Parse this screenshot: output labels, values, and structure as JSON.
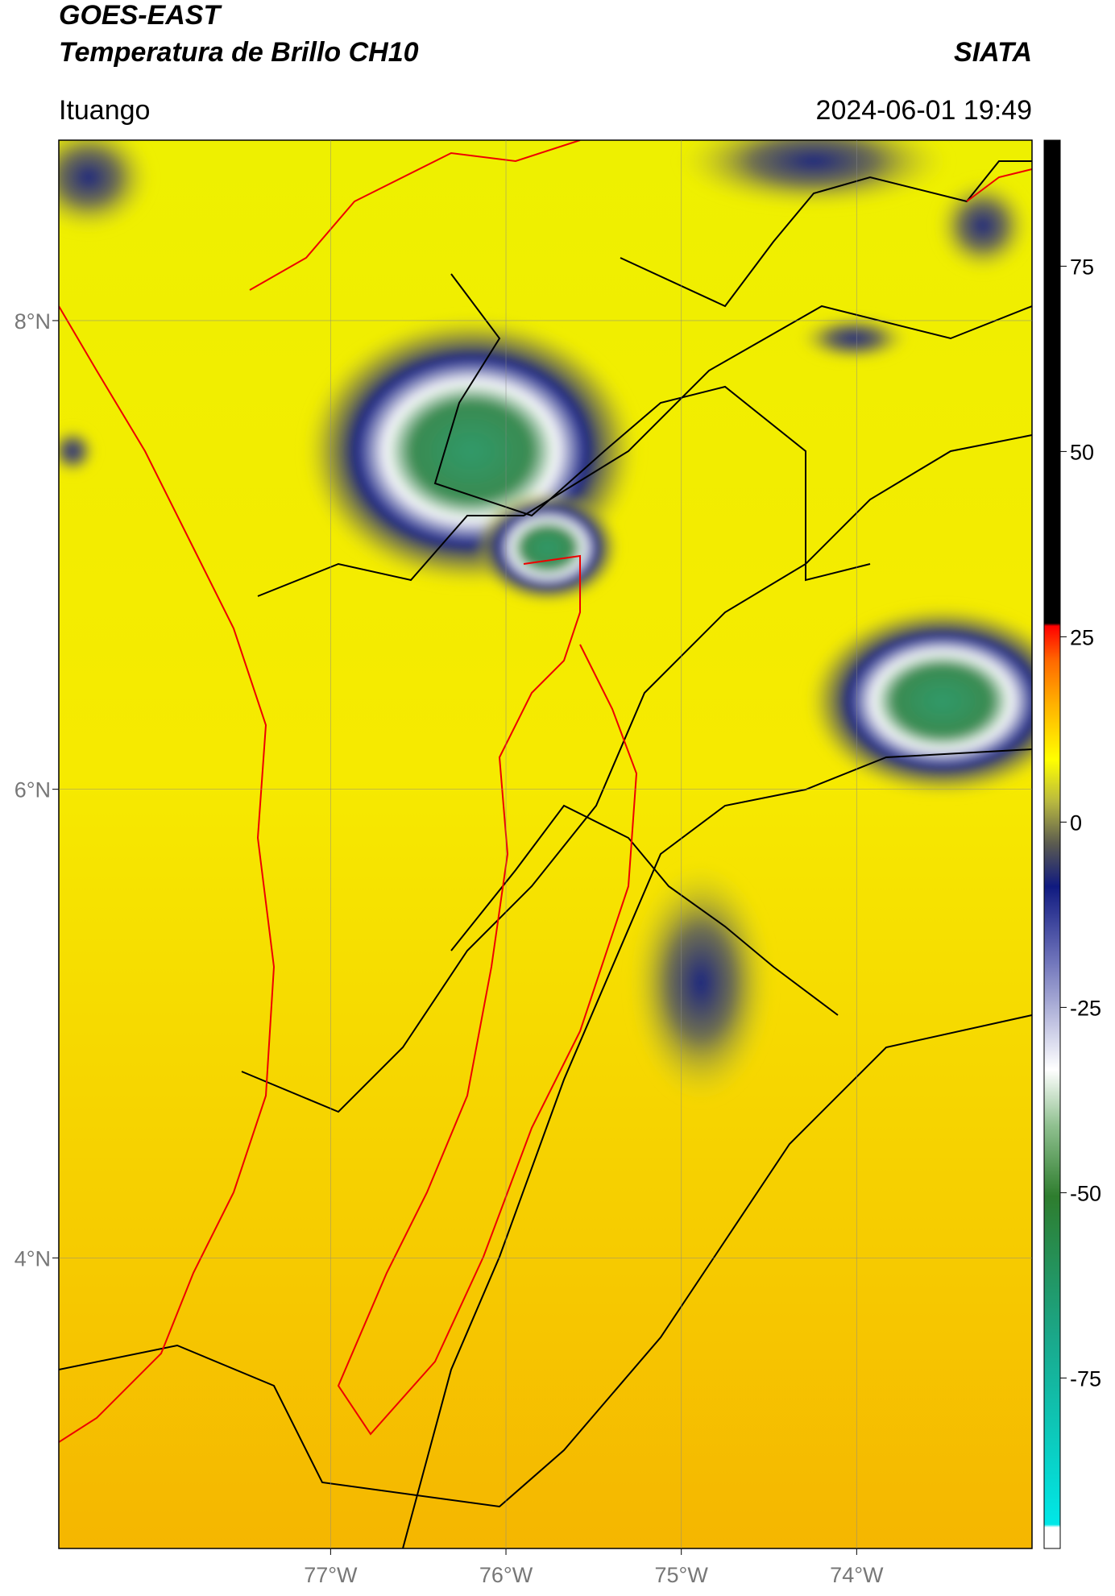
{
  "header": {
    "title": "GOES-EAST",
    "subtitle": "Temperatura de Brillo CH10",
    "source": "SIATA",
    "location": "Ituango",
    "datetime": "2024-06-01 19:49"
  },
  "map": {
    "type": "map",
    "xlim": [
      -78.55,
      -73.0
    ],
    "ylim": [
      2.76,
      8.77
    ],
    "xticks": [
      {
        "value": -77,
        "label": "77°W"
      },
      {
        "value": -76,
        "label": "76°W"
      },
      {
        "value": -75,
        "label": "75°W"
      },
      {
        "value": -74,
        "label": "74°W"
      }
    ],
    "yticks": [
      {
        "value": 8,
        "label": "8°N"
      },
      {
        "value": 6,
        "label": "6°N"
      },
      {
        "value": 4,
        "label": "4°N"
      }
    ],
    "grid": true
  },
  "colorbar": {
    "lim": [
      -98,
      92
    ],
    "ticks": [
      75,
      50,
      25,
      0,
      -25,
      -50,
      -75
    ]
  }
}
